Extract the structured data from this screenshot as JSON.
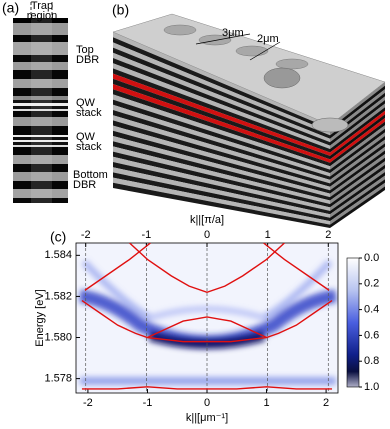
{
  "panels": {
    "a": {
      "label": "(a)",
      "trap_region": [
        "Trap",
        "region"
      ],
      "top_dbr": [
        "Top",
        "DBR"
      ],
      "qw_stack_1": [
        "QW",
        "stack"
      ],
      "qw_stack_2": [
        "QW",
        "stack"
      ],
      "bottom_dbr": [
        "Bottom",
        "DBR"
      ]
    },
    "b": {
      "label": "(b)",
      "dim_1": "3μm",
      "dim_2": "2μm"
    },
    "c": {
      "label": "(c)"
    }
  },
  "chart_data": {
    "type": "line",
    "xlabel": "k||[μm⁻¹]",
    "x2label": "k||[π/a]",
    "ylabel": "Energy [eV]",
    "xlim": [
      -2.2,
      2.2
    ],
    "xticks": [
      -2,
      -1,
      0,
      1,
      2
    ],
    "x2lim": [
      -2.16,
      2.16
    ],
    "x2ticks": [
      -2,
      -1,
      0,
      1,
      2
    ],
    "x2grid": true,
    "ylim": [
      1.5773,
      1.5846
    ],
    "yticks": [
      1.578,
      {
        "value": 1.58,
        "label": "1.580"
      },
      1.582,
      1.584
    ],
    "colorbar": {
      "lim": [
        0,
        1
      ],
      "ticks": [
        {
          "value": 0,
          "label": "0.0"
        },
        0.2,
        0.4,
        0.6,
        0.8,
        {
          "value": 1,
          "label": "1.0"
        }
      ]
    },
    "series": [
      {
        "color": "#e01010",
        "x": [
          -2.1,
          -1.5,
          -1,
          -0.5,
          0,
          0.5,
          1,
          1.5,
          2.1
        ],
        "values": [
          1.5775,
          1.5775,
          1.5776,
          1.5775,
          1.5775,
          1.5775,
          1.5776,
          1.5775,
          1.5775
        ]
      },
      {
        "color": "#e01010",
        "x": [
          -2.1,
          -1.8,
          -1.5,
          -1.2,
          -1,
          -0.7,
          -0.4,
          0,
          0.4,
          0.7,
          1,
          1.2,
          1.5,
          1.8,
          2.1
        ],
        "values": [
          1.5818,
          1.5812,
          1.5806,
          1.5802,
          1.58,
          1.5799,
          1.5798,
          1.5798,
          1.5798,
          1.5799,
          1.58,
          1.5802,
          1.5806,
          1.5812,
          1.5818
        ]
      },
      {
        "color": "#e01010",
        "x": [
          -1,
          -0.7,
          -0.4,
          -0.2,
          0,
          0.2,
          0.4,
          0.7,
          1
        ],
        "values": [
          1.58,
          1.5804,
          1.5808,
          1.5809,
          1.581,
          1.5809,
          1.5808,
          1.5804,
          1.58
        ]
      },
      {
        "color": "#e01010",
        "x": [
          -1.3,
          -1,
          -0.6,
          -0.3,
          0,
          0.3,
          0.6,
          1,
          1.3
        ],
        "values": [
          1.5846,
          1.5838,
          1.583,
          1.5825,
          1.5822,
          1.5825,
          1.583,
          1.5838,
          1.5846
        ]
      },
      {
        "color": "#e01010",
        "x": [
          -0.95,
          -1.3,
          -1.7,
          -2.05
        ],
        "values": [
          1.5846,
          1.5838,
          1.583,
          1.5823
        ]
      },
      {
        "color": "#e01010",
        "x": [
          0.95,
          1.3,
          1.7,
          2.05
        ],
        "values": [
          1.5846,
          1.5838,
          1.583,
          1.5823
        ]
      }
    ]
  }
}
